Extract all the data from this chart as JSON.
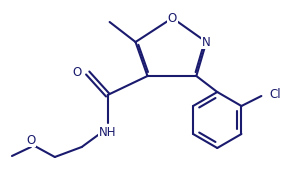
{
  "bg_color": "#ffffff",
  "line_color": "#1a1a6e",
  "line_width": 1.5,
  "font_size": 8.5,
  "figsize": [
    2.84,
    1.89
  ],
  "dpi": 100,
  "xlim": [
    0,
    284
  ],
  "ylim": [
    0,
    189
  ]
}
